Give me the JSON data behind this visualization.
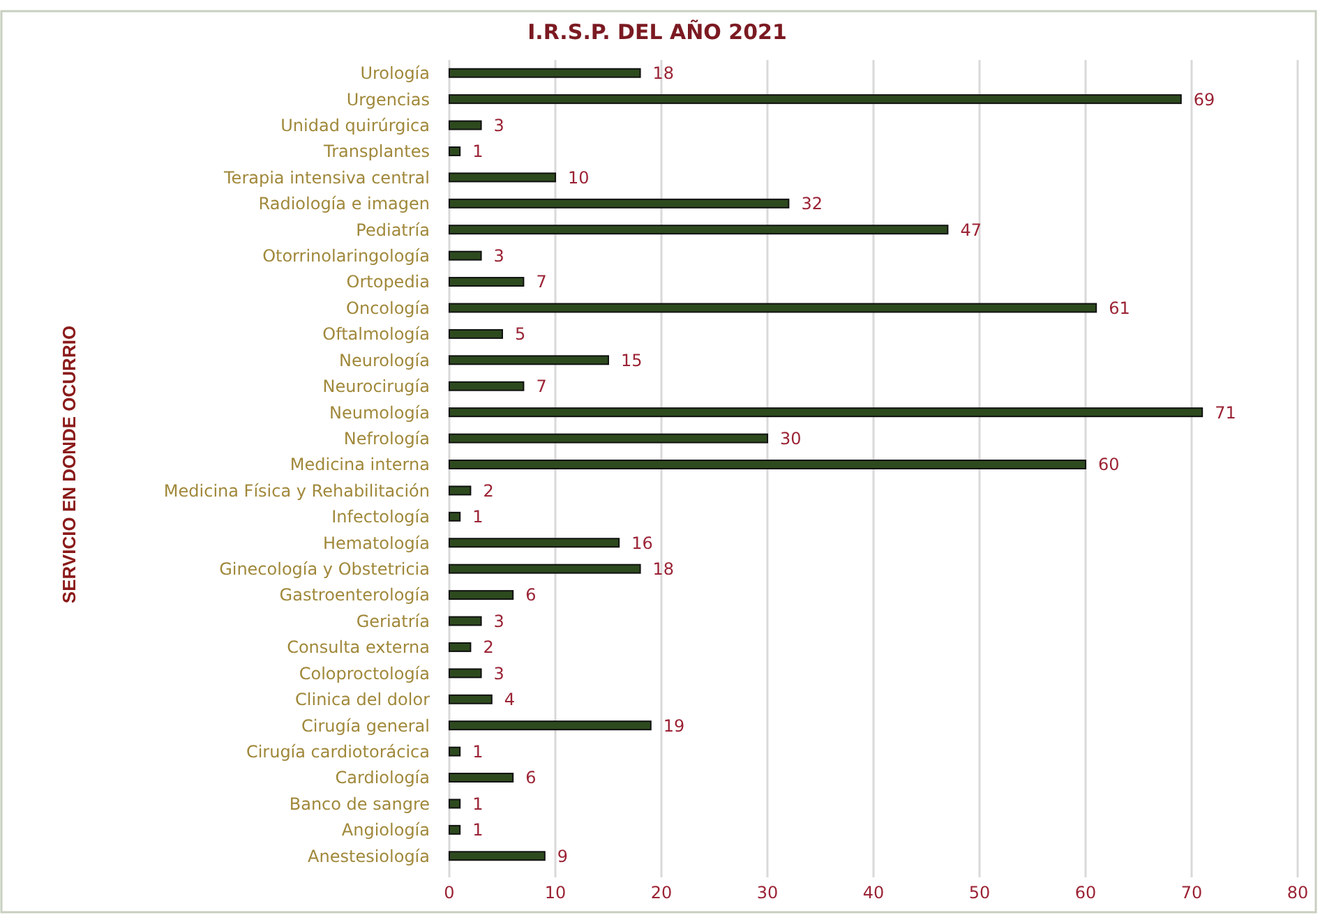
{
  "chart_data": {
    "type": "bar",
    "orientation": "horizontal",
    "title": "I.R.S.P. DEL AÑO 2021",
    "ylabel": "SERVICIO EN DONDE OCURRIO",
    "categories": [
      "Urología",
      "Urgencias",
      "Unidad quirúrgica",
      "Transplantes",
      "Terapia intensiva central",
      "Radiología e imagen",
      "Pediatría",
      "Otorrinolaringología",
      "Ortopedia",
      "Oncología",
      "Oftalmología",
      "Neurología",
      "Neurocirugía",
      "Neumología",
      "Nefrología",
      "Medicina interna",
      "Medicina Física y Rehabilitación",
      "Infectología",
      "Hematología",
      "Ginecología y Obstetricia",
      "Gastroenterología",
      "Geriatría",
      "Consulta externa",
      "Coloproctología",
      "Clinica del dolor",
      "Cirugía general",
      "Cirugía cardiotorácica",
      "Cardiología",
      "Banco de sangre",
      "Angiología",
      "Anestesiología"
    ],
    "values": [
      18,
      69,
      3,
      1,
      10,
      32,
      47,
      3,
      7,
      61,
      5,
      15,
      7,
      71,
      30,
      60,
      2,
      1,
      16,
      18,
      6,
      3,
      2,
      3,
      4,
      19,
      1,
      6,
      1,
      1,
      9
    ],
    "color": "#2d4a1e",
    "xlim": [
      0,
      80
    ],
    "xticks": [
      0,
      10,
      20,
      30,
      40,
      50,
      60,
      70,
      80
    ],
    "grid": "x",
    "data_labels": true
  }
}
